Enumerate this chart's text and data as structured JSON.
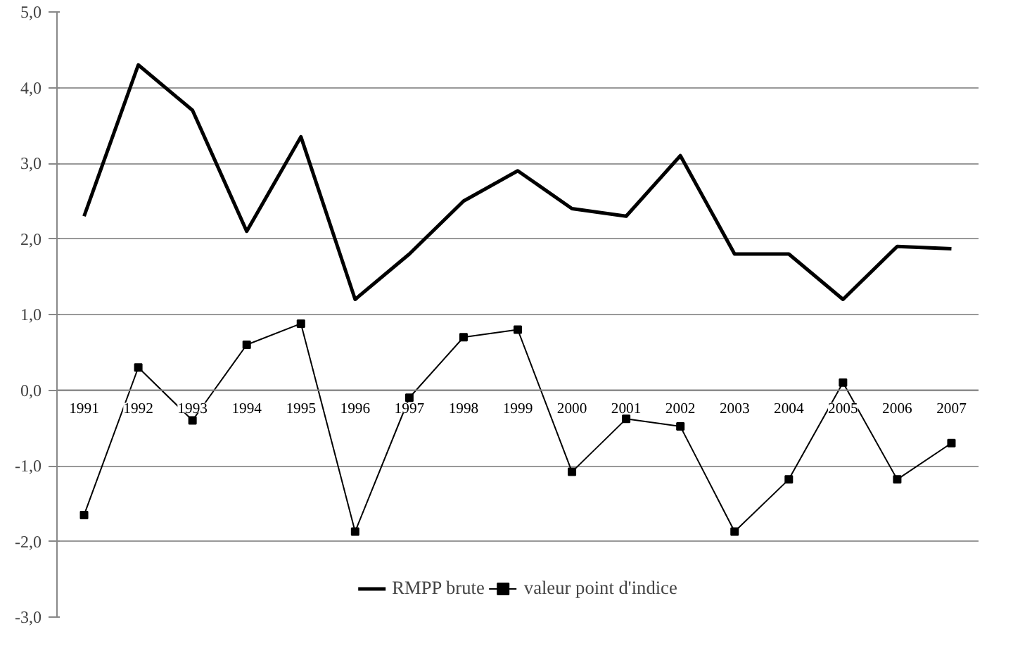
{
  "chart_data": {
    "type": "line",
    "categories": [
      "1991",
      "1992",
      "1993",
      "1994",
      "1995",
      "1996",
      "1997",
      "1998",
      "1999",
      "2000",
      "2001",
      "2002",
      "2003",
      "2004",
      "2005",
      "2006",
      "2007"
    ],
    "series": [
      {
        "name": "RMPP brute",
        "color": "#000000",
        "marker": "none",
        "values": [
          2.3,
          4.3,
          3.7,
          2.1,
          3.35,
          1.2,
          1.8,
          2.5,
          2.9,
          2.4,
          2.3,
          3.1,
          1.8,
          1.8,
          1.2,
          1.9,
          1.87
        ]
      },
      {
        "name": "valeur point d'indice",
        "color": "#000000",
        "marker": "square",
        "values": [
          -1.65,
          0.3,
          -0.4,
          0.6,
          0.88,
          -1.87,
          -0.1,
          0.7,
          0.8,
          -1.08,
          -0.38,
          -0.48,
          -1.87,
          -1.18,
          0.1,
          -1.18,
          -0.7
        ]
      }
    ],
    "ylim": [
      -3,
      5
    ],
    "yticks": [
      {
        "value": -3,
        "label": "-3,0"
      },
      {
        "value": -2,
        "label": "-2,0"
      },
      {
        "value": -1,
        "label": "-1,0"
      },
      {
        "value": 0,
        "label": "0,0"
      },
      {
        "value": 1,
        "label": "1,0"
      },
      {
        "value": 2,
        "label": "2,0"
      },
      {
        "value": 3,
        "label": "3,0"
      },
      {
        "value": 4,
        "label": "4,0"
      },
      {
        "value": 5,
        "label": "5,0"
      }
    ],
    "grid": "y",
    "legend": "bottom",
    "line_style": "solid"
  }
}
